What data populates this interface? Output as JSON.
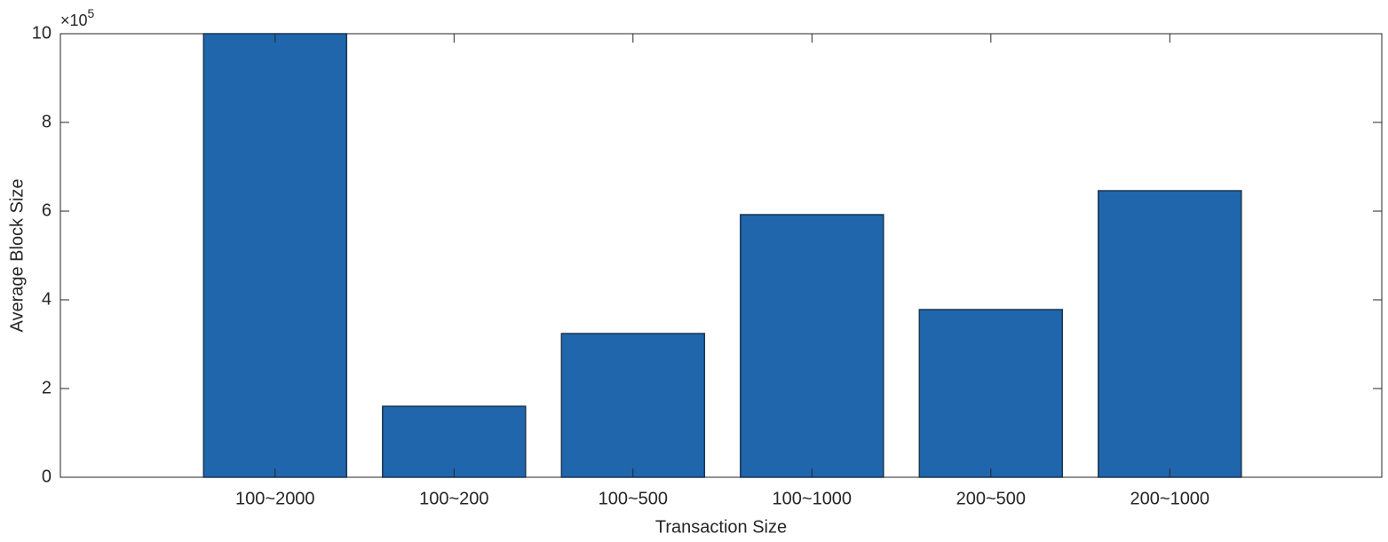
{
  "chart_data": {
    "type": "bar",
    "x_label": "Transaction Size",
    "y_label": "Average Block Size",
    "y_multiplier": {
      "base": "×10",
      "exponent": "5"
    },
    "categories": [
      "100~2000",
      "100~200",
      "100~500",
      "100~1000",
      "200~500",
      "200~1000"
    ],
    "values": [
      10,
      1.6,
      3.24,
      5.92,
      3.78,
      6.46
    ],
    "color": "#2066ad",
    "edge_color": "#1a3550",
    "ylim": [
      0,
      10
    ],
    "yticks": [
      0,
      2,
      4,
      6,
      8,
      10
    ],
    "grid": false
  }
}
